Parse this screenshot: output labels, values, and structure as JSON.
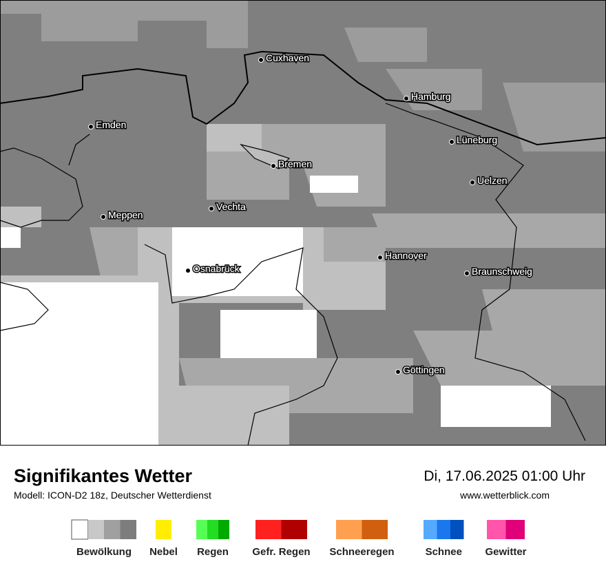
{
  "title": "Signifikantes Wetter",
  "model": "Modell: ICON-D2 18z, Deutscher Wetterdienst",
  "datetime": "Di, 17.06.2025 01:00 Uhr",
  "url": "www.wetterblick.com",
  "cities": [
    "Cuxhaven",
    "Hamburg",
    "Emden",
    "Lüneburg",
    "Bremen",
    "Uelzen",
    "Vechta",
    "Meppen",
    "Hannover",
    "Osnabrück",
    "Braunschweig",
    "Göttingen"
  ],
  "legend": [
    {
      "label": "Bewölkung",
      "colors": [
        "#ffffff",
        "#c8c8c8",
        "#a0a0a0",
        "#7d7d7d"
      ]
    },
    {
      "label": "Nebel",
      "colors": [
        "#ffee00"
      ]
    },
    {
      "label": "Regen",
      "colors": [
        "#55ff55",
        "#22dd22",
        "#00aa00"
      ]
    },
    {
      "label": "Gefr. Regen",
      "colors": [
        "#ff2020",
        "#b00000"
      ]
    },
    {
      "label": "Schneeregen",
      "colors": [
        "#ffa050",
        "#d06010"
      ]
    },
    {
      "label": "Schnee",
      "colors": [
        "#55aaff",
        "#1a77ee",
        "#0050c0"
      ]
    },
    {
      "label": "Gewitter",
      "colors": [
        "#ff55aa",
        "#e0007a"
      ]
    }
  ]
}
